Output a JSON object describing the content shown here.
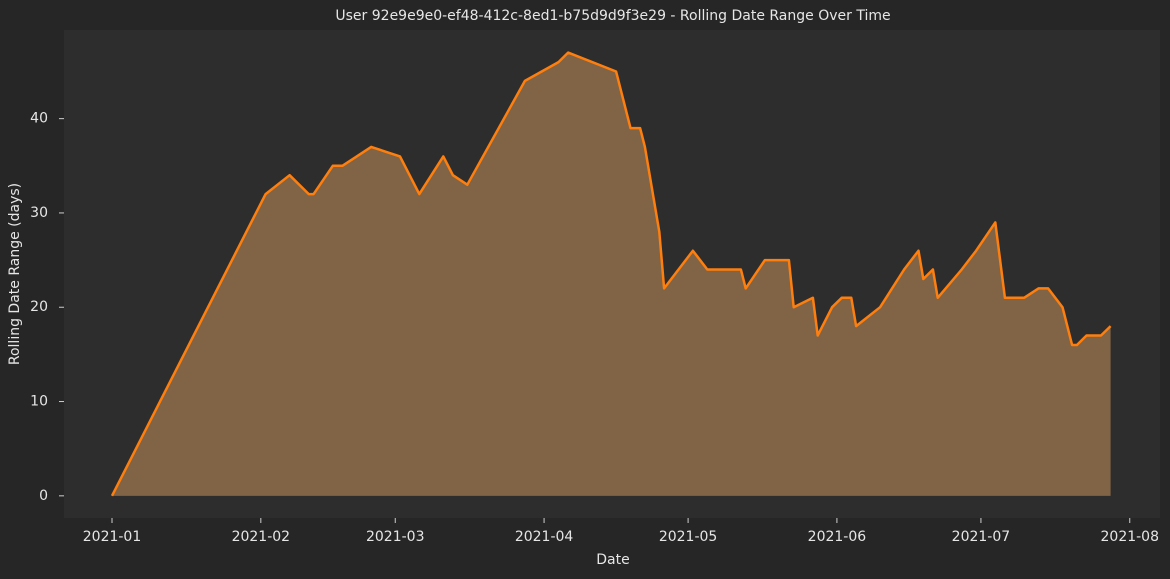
{
  "chart_data": {
    "type": "area",
    "title": "User 92e9e9e0-ef48-412c-8ed1-b75d9d9f3e29 - Rolling Date Range Over Time",
    "x_label": "Date",
    "y_label": "Rolling Date Range (days)",
    "x": [
      0,
      32,
      37,
      41,
      42,
      46,
      48,
      54,
      60,
      64,
      69,
      71,
      74,
      86,
      93,
      95,
      105,
      106.5,
      108,
      110,
      111,
      114,
      115,
      121,
      124,
      131,
      132,
      136,
      141,
      142,
      146,
      147,
      150,
      152,
      154,
      155,
      160,
      165,
      168,
      169,
      171,
      172,
      177,
      180,
      184,
      186,
      190,
      193,
      195,
      198,
      199,
      200,
      201,
      203,
      206,
      208
    ],
    "values": [
      0,
      32,
      34,
      32,
      32,
      35,
      35,
      37,
      36,
      32,
      36,
      34,
      33,
      44,
      46,
      47,
      45,
      42,
      39,
      39,
      37,
      28,
      22,
      26,
      24,
      24,
      22,
      25,
      25,
      20,
      21,
      17,
      20,
      21,
      21,
      18,
      20,
      24,
      26,
      23,
      24,
      21,
      24,
      26,
      29,
      21,
      21,
      22,
      22,
      20,
      18,
      16,
      16,
      17,
      17,
      18
    ],
    "color": "#ff7f0e",
    "fill_color": "#806445",
    "xlim": [
      -10,
      218.3
    ],
    "xticks": [
      {
        "value": 0,
        "label": "2021-01"
      },
      {
        "value": 31,
        "label": "2021-02"
      },
      {
        "value": 59,
        "label": "2021-03"
      },
      {
        "value": 90,
        "label": "2021-04"
      },
      {
        "value": 120,
        "label": "2021-05"
      },
      {
        "value": 151,
        "label": "2021-06"
      },
      {
        "value": 181,
        "label": "2021-07"
      },
      {
        "value": 212,
        "label": "2021-08"
      }
    ],
    "ylim": [
      -2.35,
      49.4
    ],
    "yticks": [
      0,
      10,
      20,
      30,
      40
    ],
    "grid": false
  }
}
